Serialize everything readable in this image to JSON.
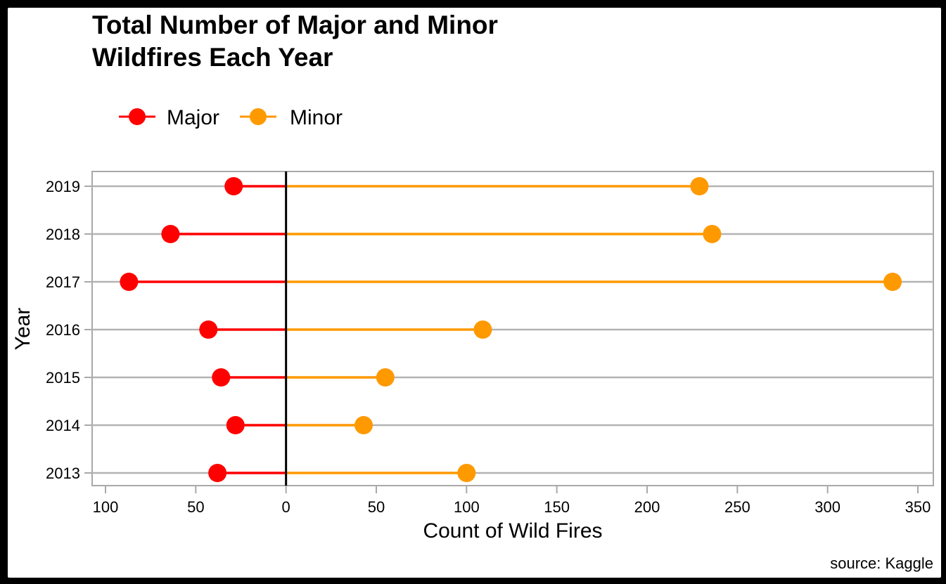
{
  "chart_data": {
    "type": "dumbbell",
    "title_lines": [
      "Total Number of Major and Minor",
      "Wildfires Each Year"
    ],
    "xlabel": "Count of Wild Fires",
    "ylabel": "Year",
    "caption": "source: Kaggle",
    "legend_position": "top-left",
    "grid": "horizontal",
    "xlim": [
      -100,
      350
    ],
    "x_ticks": [
      {
        "value": -100,
        "label": "100"
      },
      {
        "value": -50,
        "label": "50"
      },
      {
        "value": 0,
        "label": "0"
      },
      {
        "value": 50,
        "label": "50"
      },
      {
        "value": 100,
        "label": "100"
      },
      {
        "value": 150,
        "label": "150"
      },
      {
        "value": 200,
        "label": "200"
      },
      {
        "value": 250,
        "label": "250"
      },
      {
        "value": 300,
        "label": "300"
      },
      {
        "value": 350,
        "label": "350"
      }
    ],
    "categories": [
      "2013",
      "2014",
      "2015",
      "2016",
      "2017",
      "2018",
      "2019"
    ],
    "series": [
      {
        "name": "Major",
        "color": "#ff0000",
        "direction": "left",
        "values": [
          38,
          28,
          36,
          43,
          87,
          64,
          29
        ]
      },
      {
        "name": "Minor",
        "color": "#ff9900",
        "direction": "right",
        "values": [
          100,
          43,
          55,
          109,
          336,
          236,
          229
        ]
      }
    ]
  }
}
